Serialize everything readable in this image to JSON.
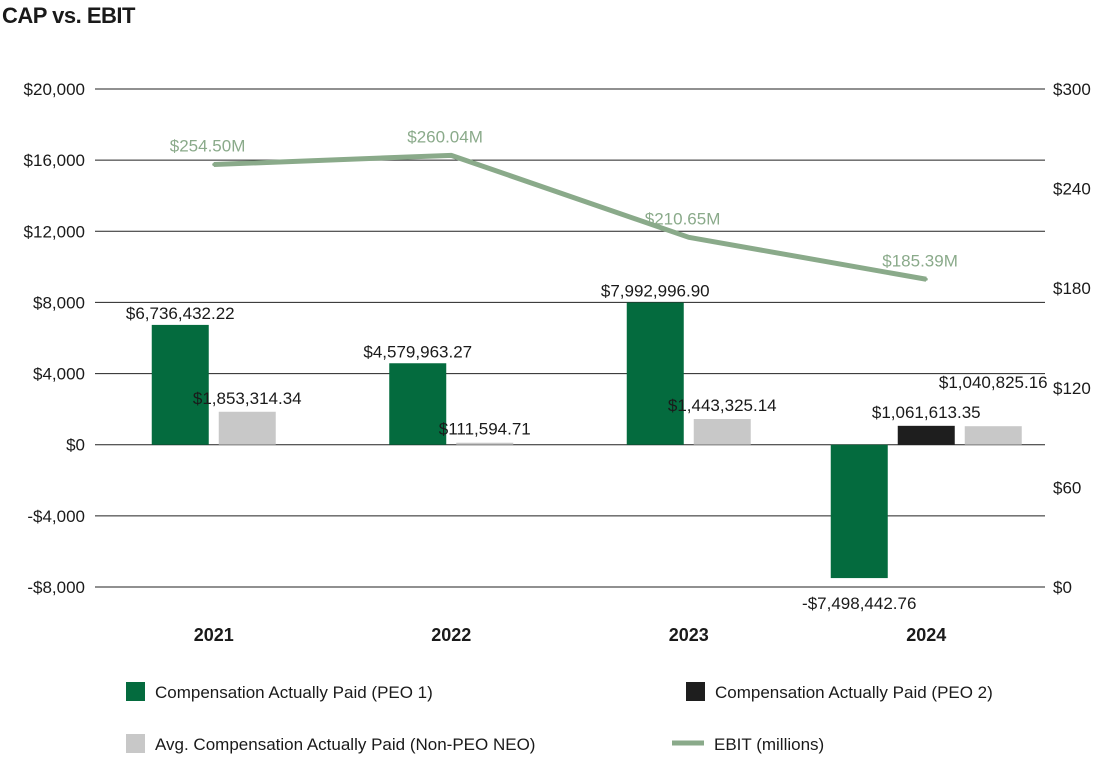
{
  "title": "CAP vs. EBIT",
  "colors": {
    "peo1": "#046b3e",
    "peo2": "#1e1e1e",
    "neo": "#c8c8c8",
    "ebit": "#8aaa8a",
    "grid": "#222222"
  },
  "chart_data": {
    "type": "bar",
    "categories": [
      "2021",
      "2022",
      "2023",
      "2024"
    ],
    "left_axis": {
      "ylim": [
        -8000,
        20000
      ],
      "ticks": [
        -8000,
        -4000,
        0,
        4000,
        8000,
        12000,
        16000,
        20000
      ],
      "tick_labels": [
        "-$8,000",
        "-$4,000",
        "$0",
        "$4,000",
        "$8,000",
        "$12,000",
        "$16,000",
        "$20,000"
      ]
    },
    "right_axis": {
      "ylim": [
        0,
        300
      ],
      "ticks": [
        0,
        60,
        120,
        180,
        240,
        300
      ],
      "tick_labels": [
        "$0",
        "$60",
        "$120",
        "$180",
        "$240",
        "$300"
      ]
    },
    "series": [
      {
        "name": "Compensation Actually Paid (PEO 1)",
        "key": "peo1",
        "type": "bar",
        "values": [
          6736.43222,
          4579.96327,
          7992.9969,
          -7498.44276
        ],
        "labels": [
          "$6,736,432.22",
          "$4,579,963.27",
          "$7,992,996.90",
          "-$7,498,442.76"
        ]
      },
      {
        "name": "Compensation Actually Paid (PEO 2)",
        "key": "peo2",
        "type": "bar",
        "values": [
          null,
          null,
          null,
          1061.61335
        ],
        "labels": [
          "",
          "",
          "",
          "$1,061,613.35"
        ]
      },
      {
        "name": "Avg. Compensation Actually Paid (Non-PEO NEO)",
        "key": "neo",
        "type": "bar",
        "values": [
          1853.31434,
          111.59471,
          1443.32514,
          1040.82516
        ],
        "labels": [
          "$1,853,314.34",
          "$111,594.71",
          "$1,443,325.14",
          "$1,040,825.16"
        ]
      },
      {
        "name": "EBIT (millions)",
        "key": "ebit",
        "type": "line",
        "axis": "right",
        "values": [
          254.5,
          260.04,
          210.65,
          185.39
        ],
        "labels": [
          "$254.50M",
          "$260.04M",
          "$210.65M",
          "$185.39M"
        ]
      }
    ],
    "legend": [
      {
        "label": "Compensation Actually Paid (PEO 1)",
        "key": "peo1",
        "kind": "square"
      },
      {
        "label": "Compensation Actually Paid (PEO 2)",
        "key": "peo2",
        "kind": "square"
      },
      {
        "label": "Avg. Compensation Actually Paid (Non-PEO NEO)",
        "key": "neo",
        "kind": "square"
      },
      {
        "label": "EBIT (millions)",
        "key": "ebit",
        "kind": "line"
      }
    ],
    "legend_position": "bottom",
    "grid": true
  }
}
